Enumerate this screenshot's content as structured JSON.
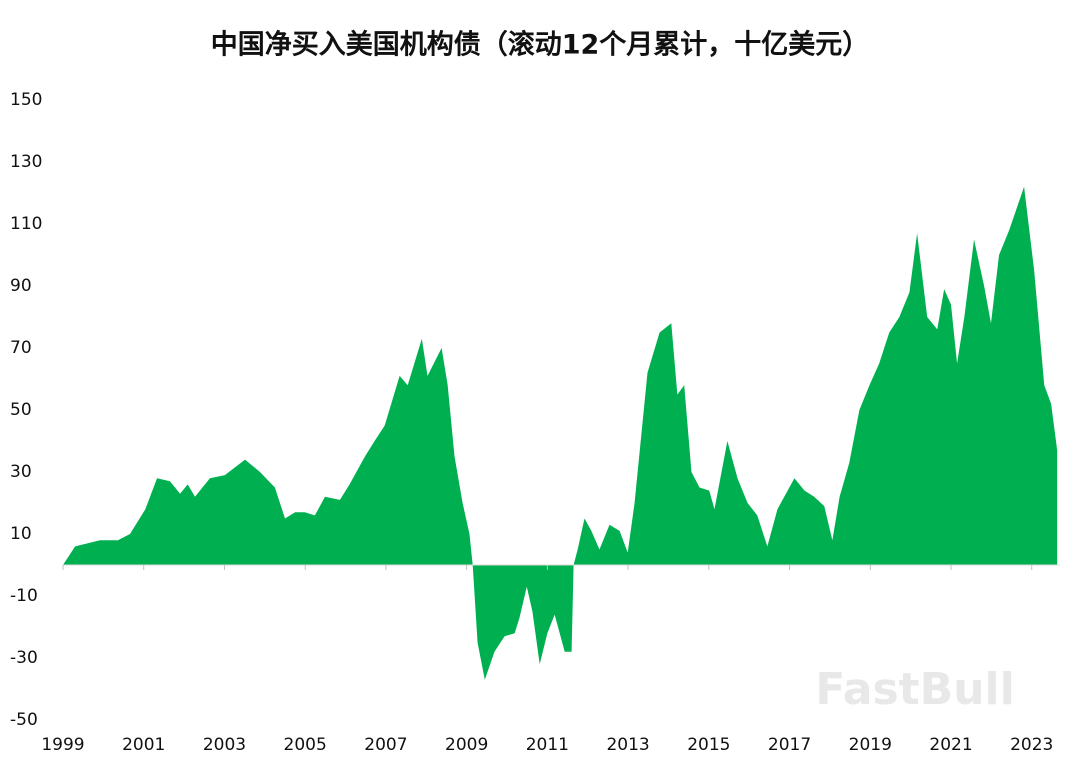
{
  "chart_data": {
    "type": "area",
    "title": "中国净买入美国机构债（滚动12个月累计，十亿美元）",
    "watermark": "FastBull",
    "color": "#00b050",
    "x": [
      1999.0,
      1999.3,
      1999.92,
      2000.36,
      2000.66,
      2001.04,
      2001.33,
      2001.65,
      2001.9,
      2002.09,
      2002.27,
      2002.64,
      2003.01,
      2003.51,
      2003.88,
      2004.25,
      2004.5,
      2004.75,
      2004.99,
      2005.24,
      2005.49,
      2005.86,
      2006.1,
      2006.48,
      2006.72,
      2006.97,
      2007.34,
      2007.54,
      2007.89,
      2008.03,
      2008.38,
      2008.53,
      2008.7,
      2008.9,
      2009.07,
      2009.15,
      2009.27,
      2009.45,
      2009.69,
      2009.94,
      2010.19,
      2010.31,
      2010.49,
      2010.63,
      2010.81,
      2011.0,
      2011.18,
      2011.43,
      2011.6,
      2011.65,
      2011.75,
      2011.92,
      2012.09,
      2012.29,
      2012.54,
      2012.79,
      2012.99,
      2013.16,
      2013.48,
      2013.78,
      2014.07,
      2014.22,
      2014.39,
      2014.57,
      2014.77,
      2015.01,
      2015.14,
      2015.46,
      2015.71,
      2015.96,
      2016.2,
      2016.45,
      2016.7,
      2017.12,
      2017.37,
      2017.61,
      2017.86,
      2018.06,
      2018.24,
      2018.48,
      2018.73,
      2018.98,
      2019.22,
      2019.47,
      2019.72,
      2019.97,
      2020.16,
      2020.41,
      2020.66,
      2020.83,
      2021.0,
      2021.15,
      2021.33,
      2021.57,
      2021.82,
      2021.99,
      2022.19,
      2022.44,
      2022.81,
      2023.06,
      2023.31,
      2023.48,
      2023.63
    ],
    "values": [
      0,
      6,
      8,
      8,
      10,
      18,
      28,
      27,
      23,
      26,
      22,
      28,
      29,
      34,
      30,
      25,
      15,
      17,
      17,
      16,
      22,
      21,
      26,
      35,
      40,
      45,
      61,
      58,
      73,
      61,
      70,
      58,
      35,
      20,
      10,
      0,
      -25,
      -37,
      -28,
      -23,
      -22,
      -17,
      -7,
      -15,
      -32,
      -22,
      -16,
      -28,
      -28,
      0,
      5,
      15,
      11,
      5,
      13,
      11,
      4,
      20,
      62,
      75,
      78,
      55,
      58,
      30,
      25,
      24,
      18,
      40,
      28,
      20,
      16,
      6,
      18,
      28,
      24,
      22,
      19,
      8,
      22,
      33,
      50,
      58,
      65,
      75,
      80,
      88,
      107,
      80,
      76,
      89,
      84,
      65,
      80,
      105,
      90,
      78,
      100,
      108,
      122,
      95,
      58,
      52,
      37
    ],
    "xlim": [
      1999,
      2023.7
    ],
    "ylim": [
      -50,
      150
    ],
    "yticks": [
      150,
      130,
      110,
      90,
      70,
      50,
      30,
      10,
      -10,
      -30,
      -50
    ],
    "xticks": [
      1999,
      2001,
      2003,
      2005,
      2007,
      2009,
      2011,
      2013,
      2015,
      2017,
      2019,
      2021,
      2023
    ]
  }
}
